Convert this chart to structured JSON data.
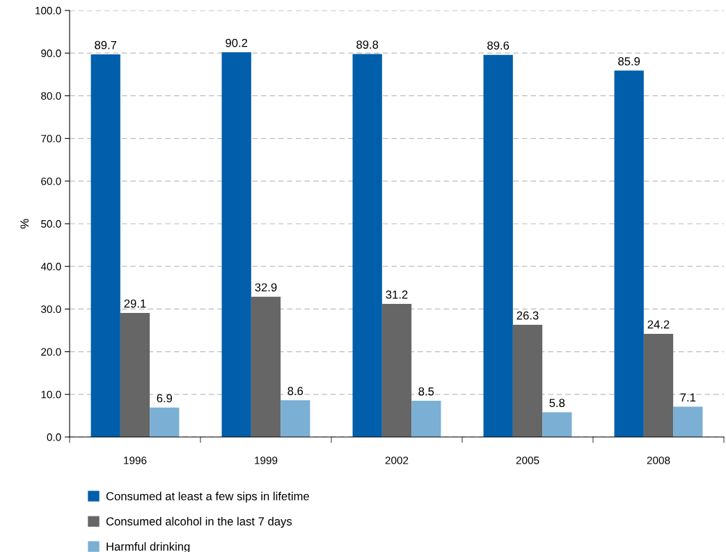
{
  "chart_data": {
    "type": "bar",
    "ylabel": "%",
    "categories": [
      "1996",
      "1999",
      "2002",
      "2005",
      "2008"
    ],
    "series": [
      {
        "name": "Consumed at least a few sips in lifetime",
        "color": "#005eaa",
        "values": [
          89.7,
          90.2,
          89.8,
          89.6,
          85.9
        ]
      },
      {
        "name": "Consumed alcohol in the last 7 days",
        "color": "#666666",
        "values": [
          29.1,
          32.9,
          31.2,
          26.3,
          24.2
        ]
      },
      {
        "name": "Harmful drinking",
        "color": "#7bafd4",
        "values": [
          6.9,
          8.6,
          8.5,
          5.8,
          7.1
        ]
      }
    ],
    "ylim": [
      0,
      100
    ],
    "yticks": [
      {
        "value": 0,
        "label": "0.0"
      },
      {
        "value": 10,
        "label": "10.0"
      },
      {
        "value": 20,
        "label": "20.0"
      },
      {
        "value": 30,
        "label": "30.0"
      },
      {
        "value": 40,
        "label": "40.0"
      },
      {
        "value": 50,
        "label": "50.0"
      },
      {
        "value": 60,
        "label": "60.0"
      },
      {
        "value": 70,
        "label": "70.0"
      },
      {
        "value": 80,
        "label": "80.0"
      },
      {
        "value": 90,
        "label": "90.0"
      },
      {
        "value": 100,
        "label": "100.0"
      }
    ],
    "grid": "y",
    "data_labels": true,
    "legend": "bottom"
  }
}
